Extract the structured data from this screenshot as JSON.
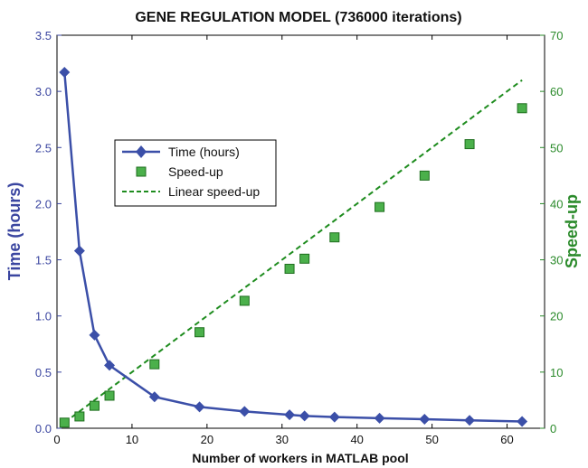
{
  "chart_data": {
    "type": "line",
    "title": "GENE REGULATION MODEL (736000 iterations)",
    "xlabel": "Number of workers in MATLAB pool",
    "ylabel_left": "Time (hours)",
    "ylabel_right": "Speed-up",
    "xlim": [
      0,
      65
    ],
    "ylim_left": [
      0,
      3.5
    ],
    "ylim_right": [
      0,
      70
    ],
    "x_ticks": [
      "0",
      "10",
      "20",
      "30",
      "40",
      "50",
      "60"
    ],
    "y_left_ticks": [
      "0.0",
      "0.5",
      "1.0",
      "1.5",
      "2.0",
      "2.5",
      "3.0",
      "3.5"
    ],
    "y_right_ticks": [
      "0",
      "10",
      "20",
      "30",
      "40",
      "50",
      "60",
      "70"
    ],
    "grid": false,
    "legend_position": "upper-left-center",
    "colors": {
      "time": "#3b4fa8",
      "speedup_fill": "#4bb04b",
      "speedup_edge": "#1e6e1e",
      "linear": "#1e8c1e",
      "axis_left": "#3a45a0",
      "axis_right": "#2a8a2a"
    },
    "series": [
      {
        "name": "Time (hours)",
        "axis": "left",
        "style": "line-diamond",
        "x": [
          1,
          3,
          5,
          7,
          13,
          19,
          25,
          31,
          33,
          37,
          43,
          49,
          55,
          62
        ],
        "y": [
          3.17,
          1.58,
          0.83,
          0.56,
          0.28,
          0.19,
          0.15,
          0.12,
          0.11,
          0.1,
          0.09,
          0.08,
          0.07,
          0.06
        ]
      },
      {
        "name": "Speed-up",
        "axis": "right",
        "style": "square-markers",
        "x": [
          1,
          3,
          5,
          7,
          13,
          19,
          25,
          31,
          33,
          37,
          43,
          49,
          55,
          62
        ],
        "y": [
          1.0,
          2.1,
          4.0,
          5.8,
          11.4,
          17.1,
          22.7,
          28.4,
          30.2,
          34.0,
          39.4,
          45.0,
          50.6,
          57.0
        ]
      },
      {
        "name": "Linear speed-up",
        "axis": "right",
        "style": "dashed-line",
        "x": [
          1,
          62
        ],
        "y": [
          1,
          62
        ]
      }
    ]
  }
}
